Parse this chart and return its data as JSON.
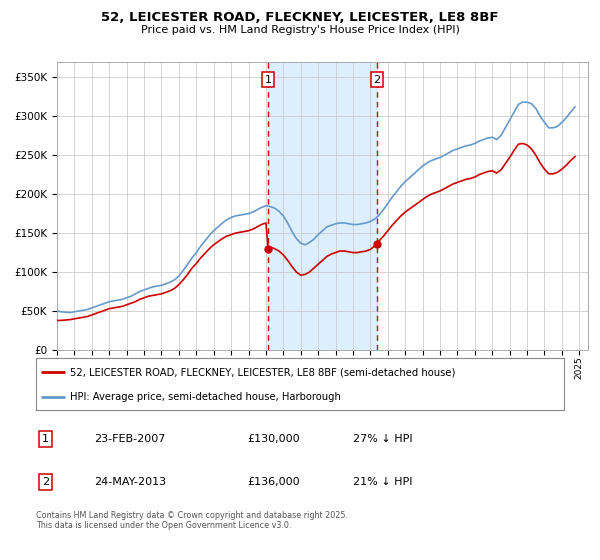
{
  "title": "52, LEICESTER ROAD, FLECKNEY, LEICESTER, LE8 8BF",
  "subtitle": "Price paid vs. HM Land Registry's House Price Index (HPI)",
  "legend_line1": "52, LEICESTER ROAD, FLECKNEY, LEICESTER, LE8 8BF (semi-detached house)",
  "legend_line2": "HPI: Average price, semi-detached house, Harborough",
  "footnote": "Contains HM Land Registry data © Crown copyright and database right 2025.\nThis data is licensed under the Open Government Licence v3.0.",
  "sale1_date": "23-FEB-2007",
  "sale1_price": "£130,000",
  "sale1_hpi": "27% ↓ HPI",
  "sale2_date": "24-MAY-2013",
  "sale2_price": "£136,000",
  "sale2_hpi": "21% ↓ HPI",
  "sale1_x": 2007.13,
  "sale2_x": 2013.38,
  "sale1_y": 130000,
  "sale2_y": 136000,
  "red_color": "#cc0000",
  "blue_color": "#6699cc",
  "shade_color": "#ddeeff",
  "background_color": "#ffffff",
  "grid_color": "#cccccc",
  "ylim": [
    0,
    370000
  ],
  "xlim_start": 1995,
  "xlim_end": 2025.5,
  "hpi_years": [
    1995.0,
    1995.25,
    1995.5,
    1995.75,
    1996.0,
    1996.25,
    1996.5,
    1996.75,
    1997.0,
    1997.25,
    1997.5,
    1997.75,
    1998.0,
    1998.25,
    1998.5,
    1998.75,
    1999.0,
    1999.25,
    1999.5,
    1999.75,
    2000.0,
    2000.25,
    2000.5,
    2000.75,
    2001.0,
    2001.25,
    2001.5,
    2001.75,
    2002.0,
    2002.25,
    2002.5,
    2002.75,
    2003.0,
    2003.25,
    2003.5,
    2003.75,
    2004.0,
    2004.25,
    2004.5,
    2004.75,
    2005.0,
    2005.25,
    2005.5,
    2005.75,
    2006.0,
    2006.25,
    2006.5,
    2006.75,
    2007.0,
    2007.25,
    2007.5,
    2007.75,
    2008.0,
    2008.25,
    2008.5,
    2008.75,
    2009.0,
    2009.25,
    2009.5,
    2009.75,
    2010.0,
    2010.25,
    2010.5,
    2010.75,
    2011.0,
    2011.25,
    2011.5,
    2011.75,
    2012.0,
    2012.25,
    2012.5,
    2012.75,
    2013.0,
    2013.25,
    2013.5,
    2013.75,
    2014.0,
    2014.25,
    2014.5,
    2014.75,
    2015.0,
    2015.25,
    2015.5,
    2015.75,
    2016.0,
    2016.25,
    2016.5,
    2016.75,
    2017.0,
    2017.25,
    2017.5,
    2017.75,
    2018.0,
    2018.25,
    2018.5,
    2018.75,
    2019.0,
    2019.25,
    2019.5,
    2019.75,
    2020.0,
    2020.25,
    2020.5,
    2020.75,
    2021.0,
    2021.25,
    2021.5,
    2021.75,
    2022.0,
    2022.25,
    2022.5,
    2022.75,
    2023.0,
    2023.25,
    2023.5,
    2023.75,
    2024.0,
    2024.25,
    2024.5,
    2024.75
  ],
  "hpi_vals": [
    50000,
    49000,
    48500,
    48000,
    49000,
    50000,
    51000,
    52000,
    54000,
    56000,
    58000,
    60000,
    62000,
    63000,
    64000,
    65000,
    67000,
    69000,
    72000,
    75000,
    77000,
    79000,
    81000,
    82000,
    83000,
    85000,
    87000,
    90000,
    95000,
    102000,
    110000,
    118000,
    125000,
    133000,
    140000,
    147000,
    153000,
    158000,
    163000,
    167000,
    170000,
    172000,
    173000,
    174000,
    175000,
    177000,
    180000,
    183000,
    185000,
    184000,
    182000,
    178000,
    172000,
    163000,
    152000,
    143000,
    137000,
    135000,
    138000,
    142000,
    148000,
    153000,
    158000,
    160000,
    162000,
    163000,
    163000,
    162000,
    161000,
    161000,
    162000,
    163000,
    165000,
    168000,
    173000,
    180000,
    188000,
    196000,
    203000,
    210000,
    216000,
    221000,
    226000,
    231000,
    236000,
    240000,
    243000,
    245000,
    247000,
    250000,
    253000,
    256000,
    258000,
    260000,
    262000,
    263000,
    265000,
    268000,
    270000,
    272000,
    273000,
    270000,
    275000,
    285000,
    295000,
    305000,
    315000,
    318000,
    318000,
    316000,
    310000,
    300000,
    292000,
    285000,
    285000,
    287000,
    292000,
    298000,
    305000,
    312000
  ],
  "price_years": [
    1995.0,
    1995.25,
    1995.5,
    1995.75,
    1996.0,
    1996.25,
    1996.5,
    1996.75,
    1997.0,
    1997.25,
    1997.5,
    1997.75,
    1998.0,
    1998.25,
    1998.5,
    1998.75,
    1999.0,
    1999.25,
    1999.5,
    1999.75,
    2000.0,
    2000.25,
    2000.5,
    2000.75,
    2001.0,
    2001.25,
    2001.5,
    2001.75,
    2002.0,
    2002.25,
    2002.5,
    2002.75,
    2003.0,
    2003.25,
    2003.5,
    2003.75,
    2004.0,
    2004.25,
    2004.5,
    2004.75,
    2005.0,
    2005.25,
    2005.5,
    2005.75,
    2006.0,
    2006.25,
    2006.5,
    2006.75,
    2007.0,
    2007.13,
    2007.25,
    2007.5,
    2007.75,
    2008.0,
    2008.25,
    2008.5,
    2008.75,
    2009.0,
    2009.25,
    2009.5,
    2009.75,
    2010.0,
    2010.25,
    2010.5,
    2010.75,
    2011.0,
    2011.25,
    2011.5,
    2011.75,
    2012.0,
    2012.25,
    2012.5,
    2012.75,
    2013.0,
    2013.38,
    2013.5,
    2013.75,
    2014.0,
    2014.25,
    2014.5,
    2014.75,
    2015.0,
    2015.25,
    2015.5,
    2015.75,
    2016.0,
    2016.25,
    2016.5,
    2016.75,
    2017.0,
    2017.25,
    2017.5,
    2017.75,
    2018.0,
    2018.25,
    2018.5,
    2018.75,
    2019.0,
    2019.25,
    2019.5,
    2019.75,
    2020.0,
    2020.25,
    2020.5,
    2020.75,
    2021.0,
    2021.25,
    2021.5,
    2021.75,
    2022.0,
    2022.25,
    2022.5,
    2022.75,
    2023.0,
    2023.25,
    2023.5,
    2023.75,
    2024.0,
    2024.25,
    2024.5,
    2024.75
  ],
  "price_vals": [
    38000,
    38000,
    38500,
    39000,
    40000,
    41000,
    42000,
    43000,
    45000,
    47000,
    49000,
    51000,
    53000,
    54000,
    55000,
    56000,
    58000,
    60000,
    62000,
    65000,
    67000,
    69000,
    70000,
    71000,
    72000,
    74000,
    76000,
    79000,
    84000,
    90000,
    97000,
    105000,
    111000,
    118000,
    124000,
    130000,
    135000,
    139000,
    143000,
    146000,
    148000,
    150000,
    151000,
    152000,
    153000,
    155000,
    158000,
    161000,
    163000,
    130000,
    132000,
    130000,
    127000,
    122000,
    115000,
    107000,
    100000,
    96000,
    97000,
    100000,
    105000,
    110000,
    115000,
    120000,
    123000,
    125000,
    127000,
    127000,
    126000,
    125000,
    125000,
    126000,
    127000,
    129000,
    136000,
    140000,
    146000,
    153000,
    160000,
    166000,
    172000,
    177000,
    181000,
    185000,
    189000,
    193000,
    197000,
    200000,
    202000,
    204000,
    207000,
    210000,
    213000,
    215000,
    217000,
    219000,
    220000,
    222000,
    225000,
    227000,
    229000,
    230000,
    227000,
    231000,
    239000,
    247000,
    256000,
    264000,
    265000,
    263000,
    258000,
    250000,
    240000,
    232000,
    226000,
    226000,
    228000,
    232000,
    237000,
    243000,
    248000
  ]
}
